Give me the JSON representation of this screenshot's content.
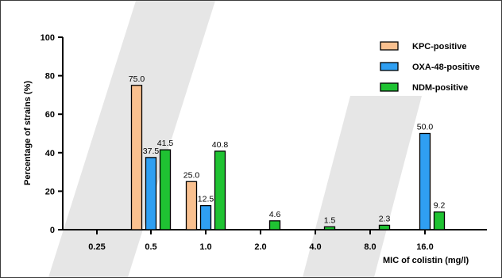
{
  "chart_data": {
    "type": "bar",
    "title": "",
    "ylabel": "Percentage of strains (%)",
    "xlabel": "MIC of colistin (mg/l)",
    "categories": [
      "0.25",
      "0.5",
      "1.0",
      "2.0",
      "4.0",
      "8.0",
      "16.0"
    ],
    "ylim": [
      0,
      100
    ],
    "yticks": [
      "0",
      "20",
      "40",
      "60",
      "80",
      "100"
    ],
    "series": [
      {
        "name": "KPC-positive",
        "color": "#f9c08f",
        "values": [
          0,
          75.0,
          25.0,
          0,
          0,
          0,
          0
        ],
        "labels": [
          "",
          "75.0",
          "25.0",
          "",
          "",
          "",
          ""
        ]
      },
      {
        "name": "OXA-48-positive",
        "color": "#2f9ff2",
        "values": [
          0,
          37.5,
          12.5,
          0,
          0,
          0,
          50.0
        ],
        "labels": [
          "",
          "37.5",
          "12.5",
          "",
          "",
          "",
          "50.0"
        ]
      },
      {
        "name": "NDM-positive",
        "color": "#1fc232",
        "values": [
          0,
          41.5,
          40.8,
          4.6,
          1.5,
          2.3,
          9.2
        ],
        "labels": [
          "",
          "41.5",
          "40.8",
          "4.6",
          "1.5",
          "2.3",
          "9.2"
        ]
      }
    ],
    "legend_position": "top-right",
    "grid": false
  }
}
